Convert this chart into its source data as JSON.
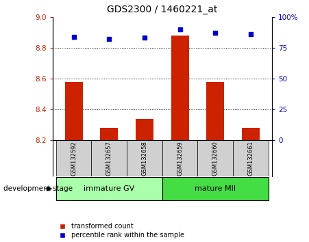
{
  "title": "GDS2300 / 1460221_at",
  "samples": [
    "GSM132592",
    "GSM132657",
    "GSM132658",
    "GSM132659",
    "GSM132660",
    "GSM132661"
  ],
  "bar_values": [
    8.58,
    8.28,
    8.34,
    8.88,
    8.58,
    8.28
  ],
  "bar_baseline": 8.2,
  "percentile_values": [
    84,
    82,
    83,
    90,
    87,
    86
  ],
  "ylim_left": [
    8.2,
    9.0
  ],
  "ylim_right": [
    0,
    100
  ],
  "yticks_left": [
    8.2,
    8.4,
    8.6,
    8.8,
    9.0
  ],
  "yticks_right": [
    0,
    25,
    50,
    75,
    100
  ],
  "bar_color": "#cc2200",
  "dot_color": "#0000cc",
  "grid_values": [
    8.4,
    8.6,
    8.8
  ],
  "group1_label": "immature GV",
  "group2_label": "mature MII",
  "group1_indices": [
    0,
    1,
    2
  ],
  "group2_indices": [
    3,
    4,
    5
  ],
  "group1_color": "#aaffaa",
  "group2_color": "#44dd44",
  "stage_label": "development stage",
  "legend_bar_label": "transformed count",
  "legend_dot_label": "percentile rank within the sample",
  "bar_width": 0.5,
  "sample_box_color": "#d0d0d0",
  "background_color": "#ffffff"
}
